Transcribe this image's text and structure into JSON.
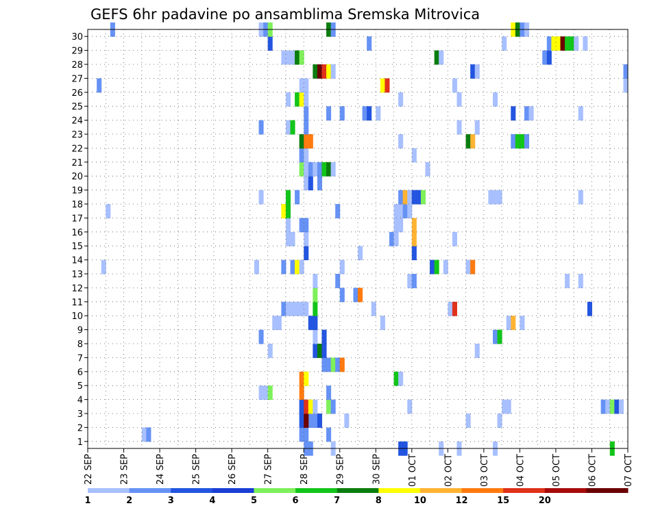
{
  "chart_data": {
    "type": "heatmap",
    "title": "GEFS 6hr padavine po ansamblima Sremska Mitrovica",
    "x_tick_labels": [
      "22 SEP",
      "23 SEP",
      "24 SEP",
      "25 SEP",
      "26 SEP",
      "27 SEP",
      "28 SEP",
      "29 SEP",
      "30 SEP",
      "01 OCT",
      "02 OCT",
      "03 OCT",
      "04 OCT",
      "05 OCT",
      "06 OCT",
      "07 OCT"
    ],
    "y_tick_labels": [
      "1",
      "2",
      "3",
      "4",
      "5",
      "6",
      "7",
      "8",
      "9",
      "10",
      "11",
      "12",
      "13",
      "14",
      "15",
      "16",
      "17",
      "18",
      "19",
      "20",
      "21",
      "22",
      "23",
      "24",
      "25",
      "26",
      "27",
      "28",
      "29",
      "30"
    ],
    "x_range_days": [
      0,
      15
    ],
    "y_range": [
      0,
      30
    ],
    "time_step_hours": 6,
    "grid": true,
    "colorbar": {
      "position": "bottom",
      "tick_labels": [
        "1",
        "2",
        "3",
        "4",
        "5",
        "6",
        "7",
        "8",
        "10",
        "12",
        "15",
        "20"
      ],
      "colors": [
        "#a8c0ff",
        "#6692f5",
        "#2355e0",
        "#1a3ed6",
        "#7ef05a",
        "#12c51a",
        "#0a7d0e",
        "#ffff00",
        "#ffb333",
        "#ff7a0f",
        "#e0311a",
        "#a80a0a",
        "#6b0000"
      ]
    },
    "cells": [
      {
        "step": 12,
        "member": 1,
        "value": 1
      },
      {
        "step": 13,
        "member": 1,
        "value": 2
      },
      {
        "step": 47,
        "member": 1,
        "value": 2
      },
      {
        "step": 48,
        "member": 1,
        "value": 2
      },
      {
        "step": 53,
        "member": 1,
        "value": 2
      },
      {
        "step": 48,
        "member": 2,
        "value": 2
      },
      {
        "step": 49,
        "member": 2,
        "value": 2
      },
      {
        "step": 50,
        "member": 2,
        "value": 2
      },
      {
        "step": 51,
        "member": 2,
        "value": 3
      },
      {
        "step": 47,
        "member": 2,
        "value": 3
      },
      {
        "step": 48,
        "member": 2,
        "value": 20
      },
      {
        "step": 57,
        "member": 2,
        "value": 1
      },
      {
        "step": 84,
        "member": 2,
        "value": 1
      },
      {
        "step": 91,
        "member": 2,
        "value": 1
      },
      {
        "step": 47,
        "member": 3,
        "value": 3
      },
      {
        "step": 48,
        "member": 3,
        "value": 15
      },
      {
        "step": 49,
        "member": 3,
        "value": 8
      },
      {
        "step": 50,
        "member": 3,
        "value": 1
      },
      {
        "step": 53,
        "member": 3,
        "value": 5
      },
      {
        "step": 54,
        "member": 3,
        "value": 2
      },
      {
        "step": 71,
        "member": 3,
        "value": 1
      },
      {
        "step": 92,
        "member": 3,
        "value": 1
      },
      {
        "step": 93,
        "member": 3,
        "value": 1
      },
      {
        "step": 114,
        "member": 3,
        "value": 2
      },
      {
        "step": 115,
        "member": 3,
        "value": 1
      },
      {
        "step": 116,
        "member": 3,
        "value": 5
      },
      {
        "step": 117,
        "member": 3,
        "value": 3
      },
      {
        "step": 118,
        "member": 3,
        "value": 1
      },
      {
        "step": 38,
        "member": 4,
        "value": 1
      },
      {
        "step": 39,
        "member": 4,
        "value": 1
      },
      {
        "step": 40,
        "member": 4,
        "value": 5
      },
      {
        "step": 47,
        "member": 4,
        "value": 12
      },
      {
        "step": 53,
        "member": 4,
        "value": 2
      },
      {
        "step": 47,
        "member": 5,
        "value": 12
      },
      {
        "step": 48,
        "member": 5,
        "value": 8
      },
      {
        "step": 68,
        "member": 5,
        "value": 6
      },
      {
        "step": 69,
        "member": 5,
        "value": 1
      },
      {
        "step": 52,
        "member": 6,
        "value": 2
      },
      {
        "step": 53,
        "member": 6,
        "value": 2
      },
      {
        "step": 54,
        "member": 6,
        "value": 5
      },
      {
        "step": 55,
        "member": 6,
        "value": 2
      },
      {
        "step": 56,
        "member": 6,
        "value": 12
      },
      {
        "step": 40,
        "member": 7,
        "value": 1
      },
      {
        "step": 50,
        "member": 7,
        "value": 3
      },
      {
        "step": 51,
        "member": 7,
        "value": 7
      },
      {
        "step": 52,
        "member": 7,
        "value": 3
      },
      {
        "step": 86,
        "member": 7,
        "value": 1
      },
      {
        "step": 38,
        "member": 8,
        "value": 2
      },
      {
        "step": 50,
        "member": 8,
        "value": 1
      },
      {
        "step": 52,
        "member": 8,
        "value": 3
      },
      {
        "step": 90,
        "member": 8,
        "value": 2
      },
      {
        "step": 91,
        "member": 8,
        "value": 6
      },
      {
        "step": 41,
        "member": 9,
        "value": 1
      },
      {
        "step": 42,
        "member": 9,
        "value": 1
      },
      {
        "step": 49,
        "member": 9,
        "value": 3
      },
      {
        "step": 50,
        "member": 9,
        "value": 3
      },
      {
        "step": 65,
        "member": 9,
        "value": 1
      },
      {
        "step": 93,
        "member": 9,
        "value": 1
      },
      {
        "step": 94,
        "member": 9,
        "value": 10
      },
      {
        "step": 96,
        "member": 9,
        "value": 1
      },
      {
        "step": 43,
        "member": 10,
        "value": 2
      },
      {
        "step": 44,
        "member": 10,
        "value": 1
      },
      {
        "step": 45,
        "member": 10,
        "value": 1
      },
      {
        "step": 46,
        "member": 10,
        "value": 1
      },
      {
        "step": 47,
        "member": 10,
        "value": 1
      },
      {
        "step": 48,
        "member": 10,
        "value": 1
      },
      {
        "step": 50,
        "member": 10,
        "value": 6
      },
      {
        "step": 63,
        "member": 10,
        "value": 1
      },
      {
        "step": 80,
        "member": 10,
        "value": 1
      },
      {
        "step": 81,
        "member": 10,
        "value": 15
      },
      {
        "step": 111,
        "member": 10,
        "value": 3
      },
      {
        "step": 50,
        "member": 11,
        "value": 5
      },
      {
        "step": 56,
        "member": 11,
        "value": 2
      },
      {
        "step": 59,
        "member": 11,
        "value": 2
      },
      {
        "step": 60,
        "member": 11,
        "value": 12
      },
      {
        "step": 50,
        "member": 12,
        "value": 1
      },
      {
        "step": 55,
        "member": 12,
        "value": 2
      },
      {
        "step": 71,
        "member": 12,
        "value": 1
      },
      {
        "step": 72,
        "member": 12,
        "value": 2
      },
      {
        "step": 106,
        "member": 12,
        "value": 1
      },
      {
        "step": 109,
        "member": 12,
        "value": 1
      },
      {
        "step": 3,
        "member": 13,
        "value": 1
      },
      {
        "step": 37,
        "member": 13,
        "value": 1
      },
      {
        "step": 43,
        "member": 13,
        "value": 2
      },
      {
        "step": 45,
        "member": 13,
        "value": 2
      },
      {
        "step": 46,
        "member": 13,
        "value": 8
      },
      {
        "step": 47,
        "member": 13,
        "value": 1
      },
      {
        "step": 56,
        "member": 13,
        "value": 1
      },
      {
        "step": 76,
        "member": 13,
        "value": 3
      },
      {
        "step": 77,
        "member": 13,
        "value": 6
      },
      {
        "step": 79,
        "member": 13,
        "value": 1
      },
      {
        "step": 84,
        "member": 13,
        "value": 1
      },
      {
        "step": 85,
        "member": 13,
        "value": 12
      },
      {
        "step": 48,
        "member": 14,
        "value": 3
      },
      {
        "step": 60,
        "member": 14,
        "value": 1
      },
      {
        "step": 72,
        "member": 14,
        "value": 3
      },
      {
        "step": 44,
        "member": 15,
        "value": 1
      },
      {
        "step": 45,
        "member": 15,
        "value": 1
      },
      {
        "step": 48,
        "member": 15,
        "value": 1
      },
      {
        "step": 67,
        "member": 15,
        "value": 2
      },
      {
        "step": 68,
        "member": 15,
        "value": 1
      },
      {
        "step": 72,
        "member": 15,
        "value": 10
      },
      {
        "step": 81,
        "member": 15,
        "value": 1
      },
      {
        "step": 44,
        "member": 16,
        "value": 1
      },
      {
        "step": 47,
        "member": 16,
        "value": 2
      },
      {
        "step": 48,
        "member": 16,
        "value": 2
      },
      {
        "step": 68,
        "member": 16,
        "value": 1
      },
      {
        "step": 69,
        "member": 16,
        "value": 1
      },
      {
        "step": 72,
        "member": 16,
        "value": 10
      },
      {
        "step": 4,
        "member": 17,
        "value": 1
      },
      {
        "step": 43,
        "member": 17,
        "value": 8
      },
      {
        "step": 44,
        "member": 17,
        "value": 6
      },
      {
        "step": 55,
        "member": 17,
        "value": 2
      },
      {
        "step": 68,
        "member": 17,
        "value": 1
      },
      {
        "step": 69,
        "member": 17,
        "value": 1
      },
      {
        "step": 70,
        "member": 17,
        "value": 2
      },
      {
        "step": 71,
        "member": 17,
        "value": 1
      },
      {
        "step": 38,
        "member": 18,
        "value": 1
      },
      {
        "step": 44,
        "member": 18,
        "value": 6
      },
      {
        "step": 46,
        "member": 18,
        "value": 2
      },
      {
        "step": 69,
        "member": 18,
        "value": 2
      },
      {
        "step": 70,
        "member": 18,
        "value": 10
      },
      {
        "step": 71,
        "member": 18,
        "value": 1
      },
      {
        "step": 72,
        "member": 18,
        "value": 3
      },
      {
        "step": 73,
        "member": 18,
        "value": 3
      },
      {
        "step": 74,
        "member": 18,
        "value": 5
      },
      {
        "step": 89,
        "member": 18,
        "value": 1
      },
      {
        "step": 90,
        "member": 18,
        "value": 1
      },
      {
        "step": 91,
        "member": 18,
        "value": 1
      },
      {
        "step": 109,
        "member": 18,
        "value": 1
      },
      {
        "step": 48,
        "member": 19,
        "value": 1
      },
      {
        "step": 49,
        "member": 19,
        "value": 3
      },
      {
        "step": 51,
        "member": 19,
        "value": 2
      },
      {
        "step": 47,
        "member": 20,
        "value": 5
      },
      {
        "step": 48,
        "member": 20,
        "value": 1
      },
      {
        "step": 49,
        "member": 20,
        "value": 2
      },
      {
        "step": 50,
        "member": 20,
        "value": 1
      },
      {
        "step": 51,
        "member": 20,
        "value": 2
      },
      {
        "step": 52,
        "member": 20,
        "value": 6
      },
      {
        "step": 53,
        "member": 20,
        "value": 7
      },
      {
        "step": 54,
        "member": 20,
        "value": 1
      },
      {
        "step": 75,
        "member": 20,
        "value": 1
      },
      {
        "step": 47,
        "member": 21,
        "value": 2
      },
      {
        "step": 48,
        "member": 21,
        "value": 1
      },
      {
        "step": 72,
        "member": 21,
        "value": 1
      },
      {
        "step": 47,
        "member": 22,
        "value": 7
      },
      {
        "step": 48,
        "member": 22,
        "value": 12
      },
      {
        "step": 49,
        "member": 22,
        "value": 12
      },
      {
        "step": 69,
        "member": 22,
        "value": 1
      },
      {
        "step": 84,
        "member": 22,
        "value": 7
      },
      {
        "step": 85,
        "member": 22,
        "value": 10
      },
      {
        "step": 94,
        "member": 22,
        "value": 2
      },
      {
        "step": 95,
        "member": 22,
        "value": 6
      },
      {
        "step": 96,
        "member": 22,
        "value": 6
      },
      {
        "step": 97,
        "member": 22,
        "value": 2
      },
      {
        "step": 38,
        "member": 23,
        "value": 2
      },
      {
        "step": 44,
        "member": 23,
        "value": 1
      },
      {
        "step": 45,
        "member": 23,
        "value": 6
      },
      {
        "step": 48,
        "member": 23,
        "value": 2
      },
      {
        "step": 82,
        "member": 23,
        "value": 1
      },
      {
        "step": 86,
        "member": 23,
        "value": 1
      },
      {
        "step": 48,
        "member": 24,
        "value": 2
      },
      {
        "step": 53,
        "member": 24,
        "value": 2
      },
      {
        "step": 56,
        "member": 24,
        "value": 2
      },
      {
        "step": 61,
        "member": 24,
        "value": 2
      },
      {
        "step": 62,
        "member": 24,
        "value": 3
      },
      {
        "step": 64,
        "member": 24,
        "value": 1
      },
      {
        "step": 94,
        "member": 24,
        "value": 3
      },
      {
        "step": 97,
        "member": 24,
        "value": 2
      },
      {
        "step": 98,
        "member": 24,
        "value": 1
      },
      {
        "step": 109,
        "member": 24,
        "value": 1
      },
      {
        "step": 44,
        "member": 25,
        "value": 1
      },
      {
        "step": 46,
        "member": 25,
        "value": 6
      },
      {
        "step": 47,
        "member": 25,
        "value": 8
      },
      {
        "step": 48,
        "member": 25,
        "value": 1
      },
      {
        "step": 69,
        "member": 25,
        "value": 1
      },
      {
        "step": 82,
        "member": 25,
        "value": 1
      },
      {
        "step": 90,
        "member": 25,
        "value": 1
      },
      {
        "step": 2,
        "member": 26,
        "value": 2
      },
      {
        "step": 47,
        "member": 26,
        "value": 1
      },
      {
        "step": 48,
        "member": 26,
        "value": 1
      },
      {
        "step": 65,
        "member": 26,
        "value": 8
      },
      {
        "step": 66,
        "member": 26,
        "value": 15
      },
      {
        "step": 81,
        "member": 26,
        "value": 1
      },
      {
        "step": 119,
        "member": 26,
        "value": 1
      },
      {
        "step": 50,
        "member": 27,
        "value": 7
      },
      {
        "step": 51,
        "member": 27,
        "value": 20
      },
      {
        "step": 52,
        "member": 27,
        "value": 15
      },
      {
        "step": 53,
        "member": 27,
        "value": 8
      },
      {
        "step": 54,
        "member": 27,
        "value": 1
      },
      {
        "step": 85,
        "member": 27,
        "value": 3
      },
      {
        "step": 86,
        "member": 27,
        "value": 1
      },
      {
        "step": 119,
        "member": 27,
        "value": 2
      },
      {
        "step": 43,
        "member": 28,
        "value": 1
      },
      {
        "step": 44,
        "member": 28,
        "value": 1
      },
      {
        "step": 45,
        "member": 28,
        "value": 1
      },
      {
        "step": 46,
        "member": 28,
        "value": 7
      },
      {
        "step": 47,
        "member": 28,
        "value": 5
      },
      {
        "step": 77,
        "member": 28,
        "value": 7
      },
      {
        "step": 78,
        "member": 28,
        "value": 1
      },
      {
        "step": 101,
        "member": 28,
        "value": 2
      },
      {
        "step": 102,
        "member": 28,
        "value": 3
      },
      {
        "step": 40,
        "member": 29,
        "value": 3
      },
      {
        "step": 62,
        "member": 29,
        "value": 2
      },
      {
        "step": 92,
        "member": 29,
        "value": 1
      },
      {
        "step": 102,
        "member": 29,
        "value": 2
      },
      {
        "step": 103,
        "member": 29,
        "value": 8
      },
      {
        "step": 104,
        "member": 29,
        "value": 8
      },
      {
        "step": 105,
        "member": 29,
        "value": 20
      },
      {
        "step": 106,
        "member": 29,
        "value": 6
      },
      {
        "step": 107,
        "member": 29,
        "value": 6
      },
      {
        "step": 108,
        "member": 29,
        "value": 1
      },
      {
        "step": 110,
        "member": 29,
        "value": 1
      },
      {
        "step": 5,
        "member": 30,
        "value": 2
      },
      {
        "step": 38,
        "member": 30,
        "value": 1
      },
      {
        "step": 39,
        "member": 30,
        "value": 2
      },
      {
        "step": 40,
        "member": 30,
        "value": 5
      },
      {
        "step": 53,
        "member": 30,
        "value": 7
      },
      {
        "step": 54,
        "member": 30,
        "value": 2
      },
      {
        "step": 94,
        "member": 30,
        "value": 8
      },
      {
        "step": 95,
        "member": 30,
        "value": 7
      },
      {
        "step": 96,
        "member": 30,
        "value": 2
      },
      {
        "step": 97,
        "member": 30,
        "value": 1
      },
      {
        "step": 48,
        "member": 0,
        "value": 2
      },
      {
        "step": 49,
        "member": 0,
        "value": 2
      },
      {
        "step": 54,
        "member": 0,
        "value": 1
      },
      {
        "step": 69,
        "member": 0,
        "value": 3
      },
      {
        "step": 70,
        "member": 0,
        "value": 3
      },
      {
        "step": 78,
        "member": 0,
        "value": 1
      },
      {
        "step": 82,
        "member": 0,
        "value": 1
      },
      {
        "step": 90,
        "member": 0,
        "value": 1
      },
      {
        "step": 116,
        "member": 0,
        "value": 6
      }
    ]
  }
}
